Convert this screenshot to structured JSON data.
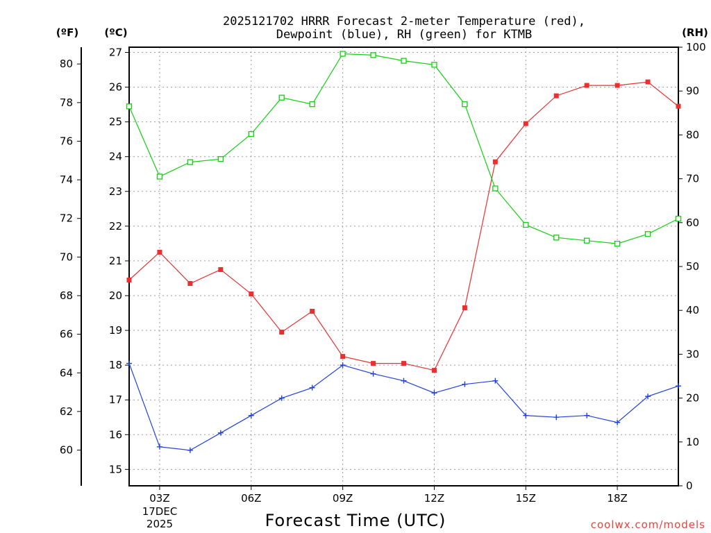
{
  "title_line1": "2025121702 HRRR Forecast 2-meter Temperature (red),",
  "title_line2": "Dewpoint (blue), RH (green) for KTMB",
  "watermark": "coolwx.com/models",
  "chart_data": {
    "type": "line",
    "x_hours": [
      2,
      3,
      4,
      5,
      6,
      7,
      8,
      9,
      10,
      11,
      12,
      13,
      14,
      15,
      16,
      17,
      18,
      19,
      20
    ],
    "xlabel": "Forecast Time (UTC)",
    "x_tick_labels": [
      {
        "hour": 3,
        "label": "03Z"
      },
      {
        "hour": 6,
        "label": "06Z"
      },
      {
        "hour": 9,
        "label": "09Z"
      },
      {
        "hour": 12,
        "label": "12Z"
      },
      {
        "hour": 15,
        "label": "15Z"
      },
      {
        "hour": 18,
        "label": "18Z"
      }
    ],
    "date_label_line1": "17DEC",
    "date_label_line2": "2025",
    "axes": {
      "fahrenheit": {
        "label": "(ºF)",
        "ticks": [
          60,
          62,
          64,
          66,
          68,
          70,
          72,
          74,
          76,
          78,
          80
        ]
      },
      "celsius": {
        "label": "(ºC)",
        "ticks": [
          15,
          16,
          17,
          18,
          19,
          20,
          21,
          22,
          23,
          24,
          25,
          26,
          27
        ],
        "range": [
          14.5,
          27.15
        ]
      },
      "rh": {
        "label": "(RH)",
        "ticks": [
          0,
          10,
          20,
          30,
          40,
          50,
          60,
          70,
          80,
          90,
          100
        ],
        "range": [
          0,
          100
        ]
      }
    },
    "series": [
      {
        "key": "temperature",
        "axis": "celsius",
        "color": "#e83030",
        "marker": "filled-square",
        "values": [
          20.45,
          21.25,
          20.35,
          20.75,
          20.05,
          18.95,
          19.55,
          18.25,
          18.05,
          18.05,
          17.85,
          19.65,
          23.85,
          24.95,
          25.75,
          26.05,
          26.05,
          26.15,
          25.45
        ]
      },
      {
        "key": "dewpoint",
        "axis": "celsius",
        "color": "#2040e0",
        "marker": "plus",
        "values": [
          18.05,
          15.65,
          15.55,
          16.05,
          16.55,
          17.05,
          17.35,
          18.0,
          17.75,
          17.55,
          17.2,
          17.45,
          17.55,
          16.55,
          16.5,
          16.55,
          16.35,
          17.1,
          17.4
        ]
      },
      {
        "key": "relative_humidity",
        "axis": "rh",
        "color": "#10d010",
        "marker": "open-square",
        "values": [
          86.5,
          70.5,
          73.8,
          74.5,
          80.2,
          88.5,
          87.0,
          98.5,
          98.2,
          96.9,
          96.0,
          87.0,
          67.8,
          59.5,
          56.6,
          55.9,
          55.2,
          57.4,
          60.9
        ]
      }
    ]
  }
}
